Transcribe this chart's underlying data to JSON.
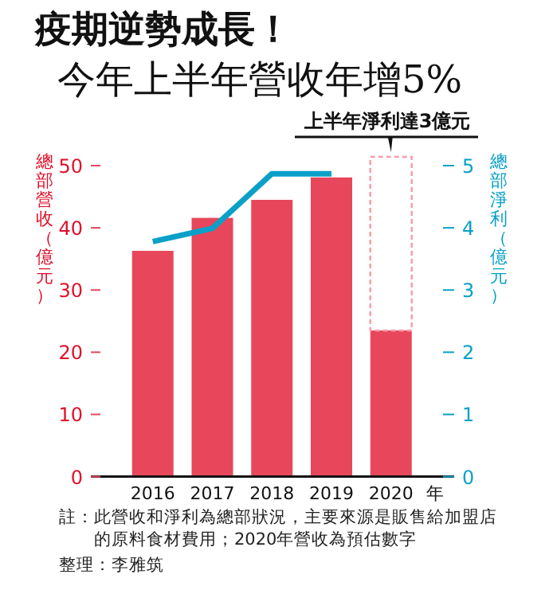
{
  "chart_data": {
    "type": "bar",
    "stacked": true,
    "title": "疫期逆勢成長！",
    "subtitle": "今年上半年營收年增5%",
    "xlabel": "年",
    "ylabel": "總部營收（億元）",
    "y2label": "總部淨利（億元）",
    "categories": [
      "2016",
      "2017",
      "2018",
      "2019",
      "2020"
    ],
    "series": [
      {
        "color": "#e8475b",
        "values": [
          36.3,
          41.6,
          44.5,
          48.1,
          23.5
        ]
      },
      {
        "color": "#f4a0ac",
        "line_style": "dashed",
        "values": [
          null,
          null,
          null,
          null,
          27.9
        ]
      },
      {
        "type": "line",
        "axis": "y2",
        "color": "#0aa0c8",
        "values": [
          3.78,
          3.99,
          4.87,
          4.87,
          null
        ]
      }
    ],
    "ylim": [
      0,
      52
    ],
    "yticks": [
      0,
      10,
      20,
      30,
      40,
      50
    ],
    "y2lim": [
      0,
      5.2
    ],
    "y2ticks": [
      0,
      1,
      2,
      3,
      4,
      5
    ],
    "annotations": [
      {
        "text": "上半年淨利達3億元",
        "x": "2020",
        "y": 51.4
      },
      "註：此營收和淨利為總部狀況，主要來源是販售給加盟店的原料食材費用；2020年營收為預估數字",
      "整理：李雅筑"
    ]
  }
}
